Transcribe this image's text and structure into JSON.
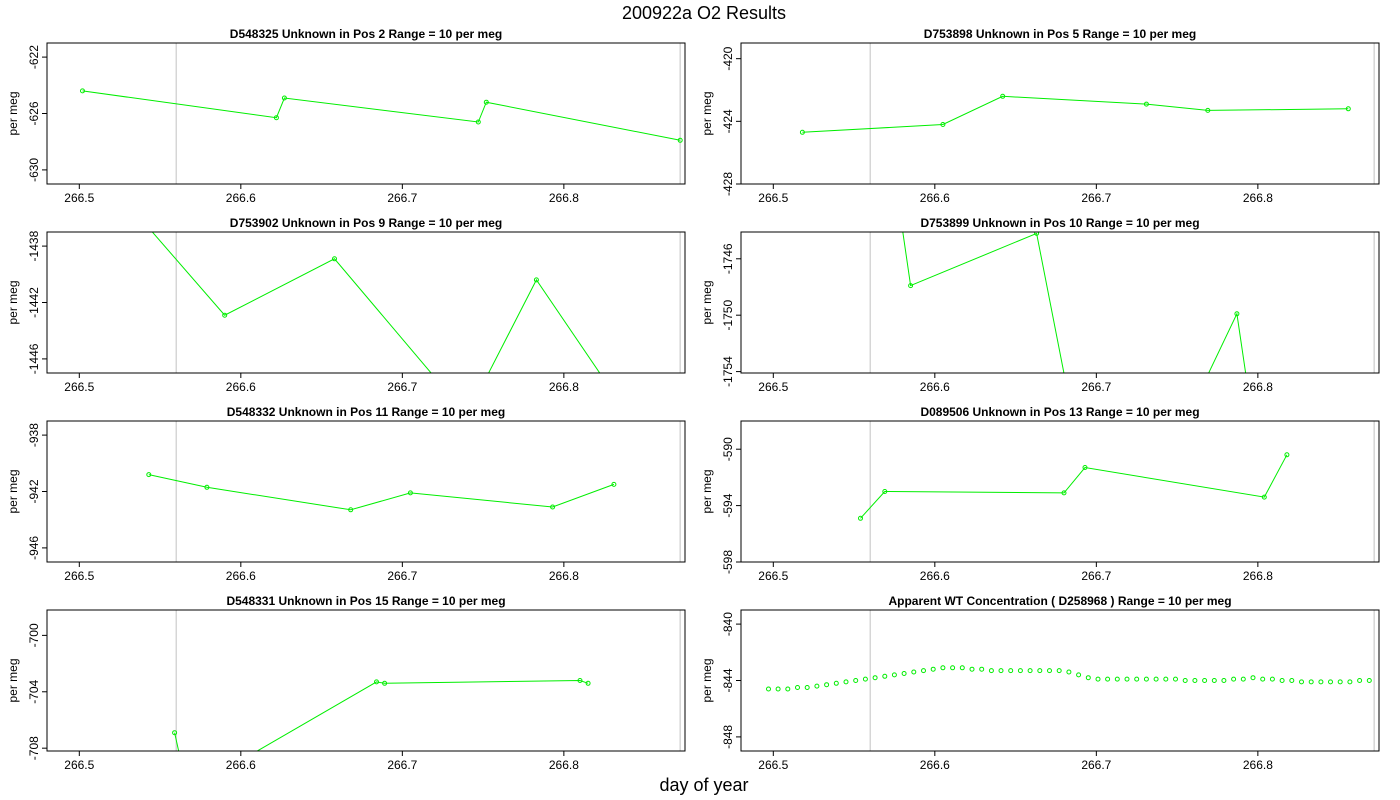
{
  "figure": {
    "title": "200922a  O2 Results",
    "xlabel": "day of year"
  },
  "style": {
    "series_color": "#00ee00",
    "vline_color": "#cccccc",
    "axis_color": "#000000"
  },
  "chart_data": [
    {
      "type": "line",
      "title": "D548325    Unknown in Pos 2         Range = 10 per meg",
      "ylabel": "per meg",
      "xlim": [
        266.48,
        266.875
      ],
      "ylim": [
        -631,
        -621
      ],
      "xticks": [
        266.5,
        266.6,
        266.7,
        266.8
      ],
      "yticks": [
        -622,
        -626,
        -630
      ],
      "vlines": [
        266.56,
        266.872
      ],
      "line_markers": true,
      "x": [
        266.502,
        266.622,
        266.627,
        266.747,
        266.752,
        266.872
      ],
      "y": [
        -624.4,
        -626.3,
        -624.9,
        -626.6,
        -625.2,
        -627.9
      ]
    },
    {
      "type": "line",
      "title": "D753898    Unknown in Pos 5         Range = 10 per meg",
      "ylabel": "per meg",
      "xlim": [
        266.48,
        266.875
      ],
      "ylim": [
        -428,
        -419
      ],
      "xticks": [
        266.5,
        266.6,
        266.7,
        266.8
      ],
      "yticks": [
        -420,
        -424,
        -428
      ],
      "vlines": [
        266.56,
        266.872
      ],
      "line_markers": true,
      "x": [
        266.518,
        266.605,
        266.642,
        266.731,
        266.769,
        266.856
      ],
      "y": [
        -424.7,
        -424.2,
        -422.4,
        -422.9,
        -423.3,
        -423.2
      ]
    },
    {
      "type": "line",
      "title": "D753902    Unknown in Pos 9         Range = 10 per meg",
      "ylabel": "per meg",
      "xlim": [
        266.48,
        266.875
      ],
      "ylim": [
        -1447,
        -1437
      ],
      "xticks": [
        266.5,
        266.6,
        266.7,
        266.8
      ],
      "yticks": [
        -1438,
        -1442,
        -1446
      ],
      "vlines": [
        266.56,
        266.872
      ],
      "line_markers": true,
      "x": [
        266.53,
        266.59,
        266.658,
        266.74,
        266.783,
        266.84
      ],
      "y": [
        -1435,
        -1442.9,
        -1438.9,
        -1450,
        -1440.4,
        -1450
      ]
    },
    {
      "type": "line",
      "title": "D753899    Unknown in Pos 10         Range = 10 per meg",
      "ylabel": "per meg",
      "xlim": [
        266.48,
        266.875
      ],
      "ylim": [
        -1754.1,
        -1744.1
      ],
      "xticks": [
        266.5,
        266.6,
        266.7,
        266.8
      ],
      "yticks": [
        -1746,
        -1750,
        -1754
      ],
      "vlines": [
        266.56,
        266.872
      ],
      "line_markers": true,
      "x": [
        266.575,
        266.585,
        266.663,
        266.69,
        266.745,
        266.787,
        266.8
      ],
      "y": [
        -1740,
        -1747.9,
        -1744.2,
        -1760,
        -1760,
        -1749.9,
        -1760
      ]
    },
    {
      "type": "line",
      "title": "D548332    Unknown in Pos 11         Range = 10 per meg",
      "ylabel": "per meg",
      "xlim": [
        266.48,
        266.875
      ],
      "ylim": [
        -947,
        -937
      ],
      "xticks": [
        266.5,
        266.6,
        266.7,
        266.8
      ],
      "yticks": [
        -938,
        -942,
        -946
      ],
      "vlines": [
        266.56,
        266.872
      ],
      "line_markers": true,
      "x": [
        266.543,
        266.579,
        266.668,
        266.705,
        266.793,
        266.831
      ],
      "y": [
        -940.8,
        -941.7,
        -943.3,
        -942.1,
        -943.1,
        -941.5
      ]
    },
    {
      "type": "line",
      "title": "D089506    Unknown in Pos 13         Range = 10 per meg",
      "ylabel": "per meg",
      "xlim": [
        266.48,
        266.875
      ],
      "ylim": [
        -598,
        -588
      ],
      "xticks": [
        266.5,
        266.6,
        266.7,
        266.8
      ],
      "yticks": [
        -590,
        -594,
        -598
      ],
      "vlines": [
        266.56,
        266.872
      ],
      "line_markers": true,
      "x": [
        266.554,
        266.569,
        266.68,
        266.693,
        266.804,
        266.818
      ],
      "y": [
        -594.9,
        -593,
        -593.1,
        -591.3,
        -593.4,
        -590.4
      ]
    },
    {
      "type": "line",
      "title": "D548331    Unknown in Pos 15         Range = 10 per meg",
      "ylabel": "per meg",
      "xlim": [
        266.48,
        266.875
      ],
      "ylim": [
        -708.2,
        -698.2
      ],
      "xticks": [
        266.5,
        266.6,
        266.7,
        266.8
      ],
      "yticks": [
        -700,
        -704,
        -708
      ],
      "vlines": [
        266.56,
        266.872
      ],
      "line_markers": true,
      "x": [
        266.559,
        266.565,
        266.583,
        266.684,
        266.689,
        266.81,
        266.815
      ],
      "y": [
        -706.9,
        -710,
        -710,
        -703.3,
        -703.4,
        -703.2,
        -703.4
      ]
    },
    {
      "type": "scatter",
      "title": "Apparent WT Concentration ( D258968 )         Range = 10 per meg",
      "ylabel": "per meg",
      "xlim": [
        266.48,
        266.875
      ],
      "ylim": [
        -849,
        -839
      ],
      "xticks": [
        266.5,
        266.6,
        266.7,
        266.8
      ],
      "yticks": [
        -840,
        -844,
        -848
      ],
      "vlines": [
        266.56,
        266.872
      ],
      "line_markers": false,
      "x": [
        266.497,
        266.503,
        266.509,
        266.515,
        266.521,
        266.527,
        266.533,
        266.539,
        266.545,
        266.551,
        266.557,
        266.563,
        266.569,
        266.575,
        266.581,
        266.587,
        266.593,
        266.599,
        266.605,
        266.611,
        266.617,
        266.623,
        266.629,
        266.635,
        266.641,
        266.647,
        266.653,
        266.659,
        266.665,
        266.671,
        266.677,
        266.683,
        266.689,
        266.695,
        266.701,
        266.707,
        266.713,
        266.719,
        266.725,
        266.731,
        266.737,
        266.743,
        266.749,
        266.755,
        266.761,
        266.767,
        266.773,
        266.779,
        266.785,
        266.791,
        266.797,
        266.803,
        266.809,
        266.815,
        266.821,
        266.827,
        266.833,
        266.839,
        266.845,
        266.851,
        266.857,
        266.863,
        266.869
      ],
      "y": [
        -844.6,
        -844.6,
        -844.6,
        -844.5,
        -844.5,
        -844.4,
        -844.3,
        -844.2,
        -844.1,
        -844.0,
        -843.9,
        -843.8,
        -843.7,
        -843.6,
        -843.5,
        -843.4,
        -843.3,
        -843.2,
        -843.1,
        -843.1,
        -843.1,
        -843.2,
        -843.2,
        -843.3,
        -843.3,
        -843.3,
        -843.3,
        -843.3,
        -843.3,
        -843.3,
        -843.3,
        -843.4,
        -843.6,
        -843.8,
        -843.9,
        -843.9,
        -843.9,
        -843.9,
        -843.9,
        -843.9,
        -843.9,
        -843.9,
        -843.9,
        -844.0,
        -844.0,
        -844.0,
        -844.0,
        -844.0,
        -843.9,
        -843.9,
        -843.8,
        -843.9,
        -843.9,
        -844.0,
        -844.0,
        -844.1,
        -844.1,
        -844.1,
        -844.1,
        -844.1,
        -844.1,
        -844.0,
        -844.0
      ]
    }
  ]
}
